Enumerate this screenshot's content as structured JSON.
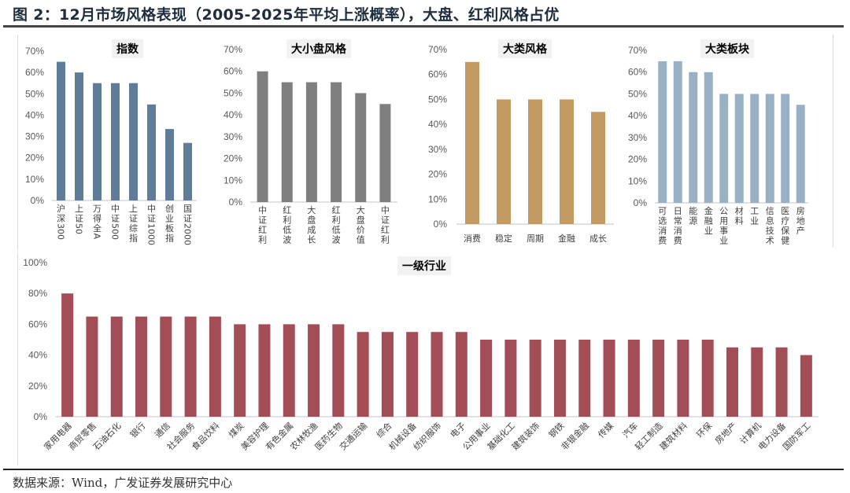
{
  "figure_title": "图 2：12月市场风格表现（2005-2025年平均上涨概率），大盘、红利风格占优",
  "source": "数据来源：Wind，广发证券发展研究中心",
  "colors": {
    "index": "#5f7d98",
    "size": "#7f7f7f",
    "style": "#c49a63",
    "sector": "#9ab0c4",
    "industry": "#a34d57"
  },
  "chart_data": [
    {
      "type": "bar",
      "title": "指数",
      "categories": [
        "沪深300",
        "上证50",
        "万得全A",
        "中证500",
        "上证综指",
        "中证1000",
        "创业板指",
        "国证2000"
      ],
      "values": [
        0.65,
        0.6,
        0.55,
        0.55,
        0.55,
        0.45,
        0.335,
        0.27
      ],
      "ylim": [
        0,
        0.7
      ],
      "yticks": [
        "0%",
        "10%",
        "20%",
        "30%",
        "40%",
        "50%",
        "60%",
        "70%"
      ],
      "xlabel": "",
      "ylabel": "",
      "grid": false
    },
    {
      "type": "bar",
      "title": "大小盘风格",
      "categories": [
        "中证红利",
        "红利低波",
        "大盘成长",
        "红利低波",
        "大盘价值",
        "中证红利"
      ],
      "values": [
        0.6,
        0.55,
        0.55,
        0.55,
        0.5,
        0.45
      ],
      "ylim": [
        0,
        0.7
      ],
      "yticks": [
        "0%",
        "10%",
        "20%",
        "30%",
        "40%",
        "50%",
        "60%",
        "70%"
      ],
      "xlabel": "",
      "ylabel": "",
      "grid": false
    },
    {
      "type": "bar",
      "title": "大类风格",
      "categories": [
        "消费",
        "稳定",
        "周期",
        "金融",
        "成长"
      ],
      "values": [
        0.65,
        0.5,
        0.5,
        0.5,
        0.45
      ],
      "ylim": [
        0,
        0.7
      ],
      "yticks": [
        "0%",
        "10%",
        "20%",
        "30%",
        "40%",
        "50%",
        "60%",
        "70%"
      ],
      "xlabel": "",
      "ylabel": "",
      "grid": false
    },
    {
      "type": "bar",
      "title": "大类板块",
      "categories": [
        "可选消费",
        "日常消费",
        "能源",
        "金融业",
        "公用事业",
        "材料",
        "工业",
        "信息技术",
        "医疗保健",
        "房地产"
      ],
      "values": [
        0.65,
        0.65,
        0.6,
        0.6,
        0.5,
        0.5,
        0.5,
        0.5,
        0.5,
        0.45
      ],
      "ylim": [
        0,
        0.7
      ],
      "yticks": [
        "0%",
        "10%",
        "20%",
        "30%",
        "40%",
        "50%",
        "60%",
        "70%"
      ],
      "xlabel": "",
      "ylabel": "",
      "grid": false
    },
    {
      "type": "bar",
      "title": "一级行业",
      "categories": [
        "家用电器",
        "商贸零售",
        "石油石化",
        "银行",
        "通信",
        "社会服务",
        "食品饮料",
        "煤炭",
        "美容护理",
        "有色金属",
        "农林牧渔",
        "医药生物",
        "交通运输",
        "综合",
        "机械设备",
        "纺织服饰",
        "电子",
        "公用事业",
        "基础化工",
        "建筑装饰",
        "钢铁",
        "非银金融",
        "传媒",
        "汽车",
        "轻工制造",
        "建筑材料",
        "环保",
        "房地产",
        "计算机",
        "电力设备",
        "国防军工"
      ],
      "values": [
        0.8,
        0.65,
        0.65,
        0.65,
        0.65,
        0.65,
        0.65,
        0.6,
        0.6,
        0.6,
        0.6,
        0.6,
        0.55,
        0.55,
        0.55,
        0.55,
        0.55,
        0.5,
        0.5,
        0.5,
        0.5,
        0.5,
        0.5,
        0.5,
        0.5,
        0.5,
        0.5,
        0.45,
        0.45,
        0.45,
        0.4
      ],
      "ylim": [
        0,
        1.0
      ],
      "yticks": [
        "0%",
        "20%",
        "40%",
        "60%",
        "80%",
        "100%"
      ],
      "xlabel": "",
      "ylabel": "",
      "grid": false
    }
  ]
}
